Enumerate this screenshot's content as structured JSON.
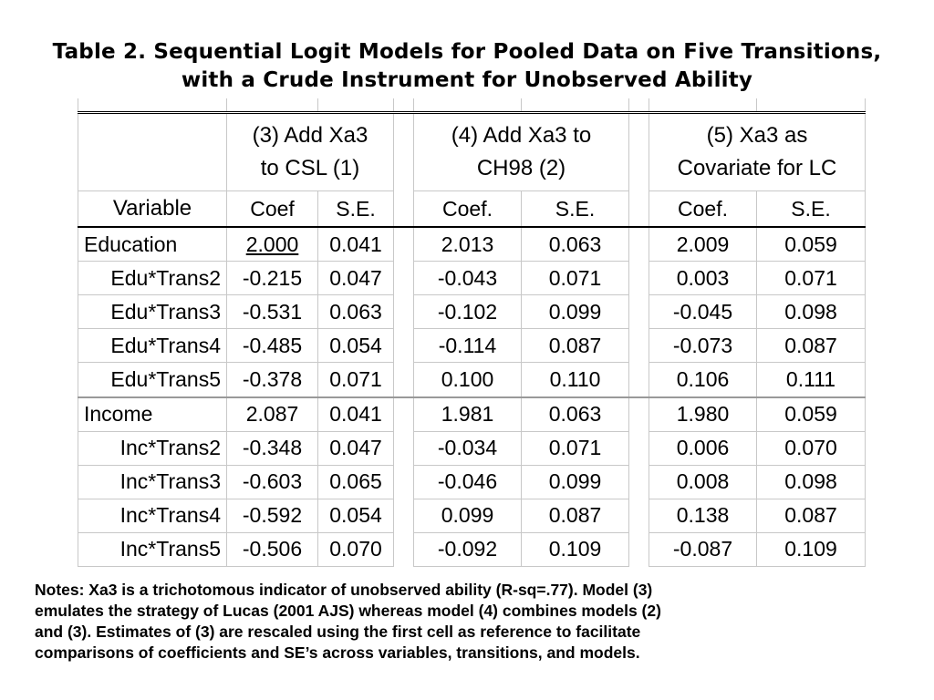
{
  "title": {
    "line1": "Table 2. Sequential Logit Models for Pooled Data on Five Transitions,",
    "line2": "with a Crude Instrument for Unobserved Ability"
  },
  "table": {
    "models": [
      {
        "line1": "(3) Add Xa3",
        "line2": "to CSL (1)"
      },
      {
        "line1": "(4) Add Xa3 to",
        "line2": "CH98 (2)"
      },
      {
        "line1": "(5) Xa3 as",
        "line2": "Covariate for LC"
      }
    ],
    "subheaders": [
      "Variable",
      "Coef",
      "S.E.",
      "Coef.",
      "S.E.",
      "Coef.",
      "S.E."
    ],
    "rows": [
      {
        "label": "Education",
        "values": [
          "2.000",
          "0.041",
          "2.013",
          "0.063",
          "2.009",
          "0.059"
        ]
      },
      {
        "label": "Edu*Trans2",
        "values": [
          "-0.215",
          "0.047",
          "-0.043",
          "0.071",
          "0.003",
          "0.071"
        ]
      },
      {
        "label": "Edu*Trans3",
        "values": [
          "-0.531",
          "0.063",
          "-0.102",
          "0.099",
          "-0.045",
          "0.098"
        ]
      },
      {
        "label": "Edu*Trans4",
        "values": [
          "-0.485",
          "0.054",
          "-0.114",
          "0.087",
          "-0.073",
          "0.087"
        ]
      },
      {
        "label": "Edu*Trans5",
        "values": [
          "-0.378",
          "0.071",
          "0.100",
          "0.110",
          "0.106",
          "0.111"
        ]
      },
      {
        "label": "Income",
        "values": [
          "2.087",
          "0.041",
          "1.981",
          "0.063",
          "1.980",
          "0.059"
        ]
      },
      {
        "label": "Inc*Trans2",
        "values": [
          "-0.348",
          "0.047",
          "-0.034",
          "0.071",
          "0.006",
          "0.070"
        ]
      },
      {
        "label": "Inc*Trans3",
        "values": [
          "-0.603",
          "0.065",
          "-0.046",
          "0.099",
          "0.008",
          "0.098"
        ]
      },
      {
        "label": "Inc*Trans4",
        "values": [
          "-0.592",
          "0.054",
          "0.099",
          "0.087",
          "0.138",
          "0.087"
        ]
      },
      {
        "label": "Inc*Trans5",
        "values": [
          "-0.506",
          "0.070",
          "-0.092",
          "0.109",
          "-0.087",
          "0.109"
        ]
      }
    ]
  },
  "notes": {
    "line1": "Notes: Xa3 is a trichotomous indicator of unobserved ability (R-sq=.77). Model (3)",
    "line2": "emulates the strategy of Lucas (2001 AJS) whereas model (4) combines models (2)",
    "line3": "and (3). Estimates of (3) are rescaled using the first cell as reference to facilitate",
    "line4": "comparisons of coefficients and SE’s across variables, transitions, and models."
  }
}
